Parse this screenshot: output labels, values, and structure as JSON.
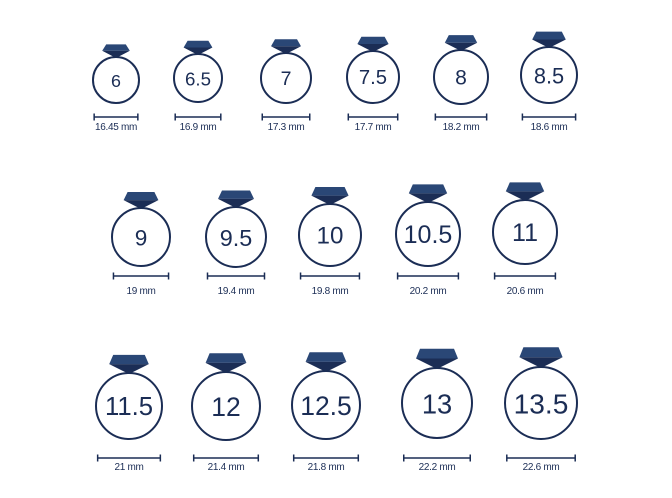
{
  "colors": {
    "ring": "#1b2d55",
    "gem": "#2a4776",
    "gem_dark": "#1b2d55"
  },
  "rings": [
    {
      "size": "6",
      "diameter": "16.45 mm"
    },
    {
      "size": "6.5",
      "diameter": "16.9 mm"
    },
    {
      "size": "7",
      "diameter": "17.3 mm"
    },
    {
      "size": "7.5",
      "diameter": "17.7 mm"
    },
    {
      "size": "8",
      "diameter": "18.2 mm"
    },
    {
      "size": "8.5",
      "diameter": "18.6 mm"
    },
    {
      "size": "9",
      "diameter": "19 mm"
    },
    {
      "size": "9.5",
      "diameter": "19.4 mm"
    },
    {
      "size": "10",
      "diameter": "19.8 mm"
    },
    {
      "size": "10.5",
      "diameter": "20.2 mm"
    },
    {
      "size": "11",
      "diameter": "20.6 mm"
    },
    {
      "size": "11.5",
      "diameter": "21 mm"
    },
    {
      "size": "12",
      "diameter": "21.4 mm"
    },
    {
      "size": "12.5",
      "diameter": "21.8 mm"
    },
    {
      "size": "13",
      "diameter": "22.2 mm"
    },
    {
      "size": "13.5",
      "diameter": "22.6 mm"
    }
  ]
}
